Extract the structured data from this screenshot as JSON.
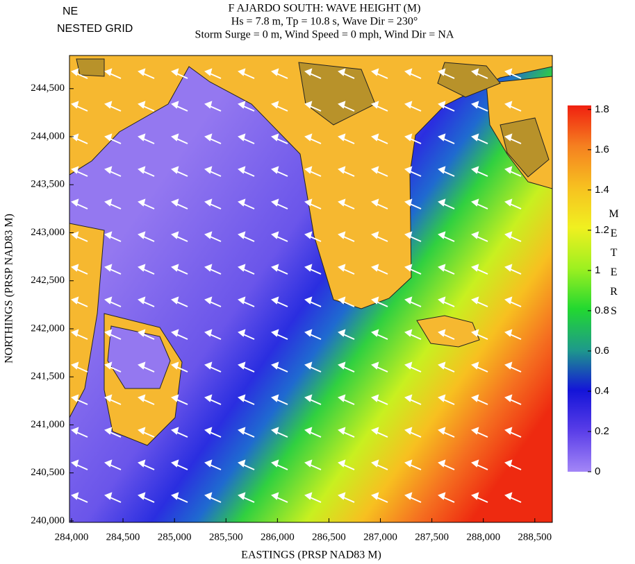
{
  "chart_data": {
    "type": "contour-map",
    "corner_labels": [
      "NE",
      "NESTED GRID"
    ],
    "title": "F AJARDO SOUTH: WAVE HEIGHT (M)",
    "subtitles": [
      "Hs = 7.8 m, Tp = 10.8 s, Wave Dir = 230°",
      "Storm Surge = 0 m, Wind Speed = 0 mph, Wind Dir = NA"
    ],
    "x_label": "EASTINGS (PRSP NAD83 M)",
    "y_label": "NORTHINGS (PRSP NAD83 M)",
    "xlim": [
      283980,
      288670
    ],
    "xticks": [
      {
        "value": 284000,
        "label": "284,000"
      },
      {
        "value": 284500,
        "label": "284,500"
      },
      {
        "value": 285000,
        "label": "285,000"
      },
      {
        "value": 285500,
        "label": "285,500"
      },
      {
        "value": 286000,
        "label": "286,000"
      },
      {
        "value": 286500,
        "label": "286,500"
      },
      {
        "value": 287000,
        "label": "287,000"
      },
      {
        "value": 287500,
        "label": "287,500"
      },
      {
        "value": 288000,
        "label": "288,000"
      },
      {
        "value": 288500,
        "label": "288,500"
      }
    ],
    "ylim": [
      239985,
      244845
    ],
    "yticks": [
      {
        "value": 240000,
        "label": "240,000"
      },
      {
        "value": 240500,
        "label": "240,500"
      },
      {
        "value": 241000,
        "label": "241,000"
      },
      {
        "value": 241500,
        "label": "241,500"
      },
      {
        "value": 242000,
        "label": "242,000"
      },
      {
        "value": 242500,
        "label": "242,500"
      },
      {
        "value": 243000,
        "label": "243,000"
      },
      {
        "value": 243500,
        "label": "243,500"
      },
      {
        "value": 244000,
        "label": "244,000"
      },
      {
        "value": 244500,
        "label": "244,500"
      }
    ],
    "colorbar": {
      "label": "METERS",
      "lim": [
        0,
        1.82
      ],
      "ticks": [
        0,
        0.2,
        0.4,
        0.6,
        0.8,
        1,
        1.2,
        1.4,
        1.6,
        1.8
      ],
      "colors": [
        "#a386f7",
        "#5a3ee8",
        "#1414d8",
        "#1e9a8a",
        "#22d830",
        "#9ef020",
        "#f0f020",
        "#f7c020",
        "#f58020",
        "#f02010"
      ]
    }
  }
}
